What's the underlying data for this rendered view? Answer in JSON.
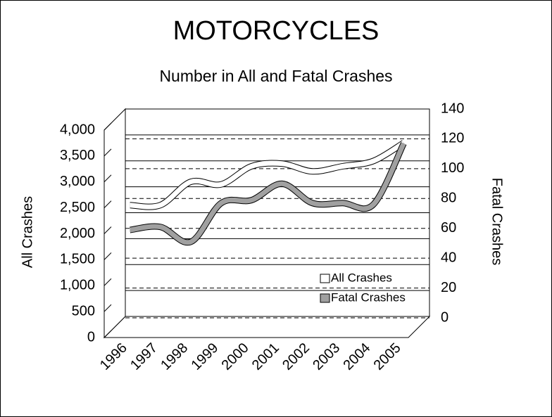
{
  "chart_data": {
    "type": "line",
    "title": "MOTORCYCLES",
    "subtitle": "Number in All and Fatal Crashes",
    "y_label": "All Crashes",
    "y2_label": "Fatal Crashes",
    "categories": [
      "1996",
      "1997",
      "1998",
      "1999",
      "2000",
      "2001",
      "2002",
      "2003",
      "2004",
      "2005"
    ],
    "series": [
      {
        "name": "All Crashes",
        "color": "#ffffff",
        "axis": "y",
        "values": [
          2350,
          2350,
          2800,
          2750,
          3100,
          3150,
          3000,
          3100,
          3200,
          3550
        ]
      },
      {
        "name": "Fatal Crashes",
        "color": "#a0a0a0",
        "axis": "y2",
        "values": [
          66,
          68,
          58,
          84,
          86,
          97,
          84,
          84,
          83,
          124
        ]
      }
    ],
    "ylim": [
      0,
      4000
    ],
    "yticks": [
      0,
      500,
      {
        "value": 1000,
        "label": "1,000"
      },
      {
        "value": 1500,
        "label": "1,500"
      },
      {
        "value": 2000,
        "label": "2,000"
      },
      {
        "value": 2500,
        "label": "2,500"
      },
      {
        "value": 3000,
        "label": "3,000"
      },
      {
        "value": 3500,
        "label": "3,500"
      },
      {
        "value": 4000,
        "label": "4,000"
      }
    ],
    "y2lim": [
      0,
      140
    ],
    "y2ticks": [
      0,
      20,
      40,
      60,
      80,
      100,
      120,
      140
    ],
    "grid": true,
    "legend": "lower right"
  }
}
